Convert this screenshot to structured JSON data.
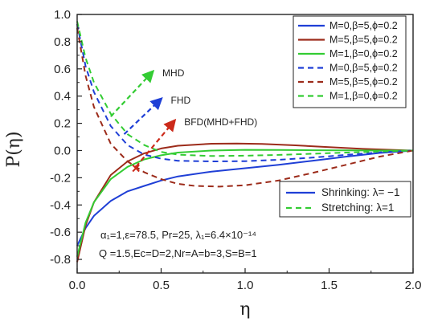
{
  "chart_data": {
    "type": "line",
    "xlabel": "η",
    "ylabel": "P(η)",
    "xlim": [
      0,
      2
    ],
    "ylim": [
      -0.9,
      1.0
    ],
    "xticks": [
      "0.0",
      "0.5",
      "1.0",
      "1.5",
      "2.0"
    ],
    "yticks": [
      "-0.8",
      "-0.6",
      "-0.4",
      "-0.2",
      "0.0",
      "0.2",
      "0.4",
      "0.6",
      "0.8",
      "1.0"
    ],
    "legend_position": "top-right",
    "series": [
      {
        "name": "M=0,β=5,ϕ=0.2",
        "color": "#1f3fd6",
        "dash": "solid",
        "group": "Shrinking",
        "x": [
          0,
          0.05,
          0.1,
          0.2,
          0.3,
          0.4,
          0.5,
          0.6,
          0.8,
          1.0,
          1.2,
          1.4,
          1.6,
          1.8,
          2.0
        ],
        "y": [
          -0.7,
          -0.57,
          -0.48,
          -0.37,
          -0.3,
          -0.26,
          -0.22,
          -0.19,
          -0.155,
          -0.13,
          -0.105,
          -0.075,
          -0.045,
          -0.018,
          0.0
        ]
      },
      {
        "name": "M=5,β=5,ϕ=0.2",
        "color": "#9c2b1a",
        "dash": "solid",
        "group": "Shrinking",
        "x": [
          0,
          0.05,
          0.1,
          0.2,
          0.3,
          0.4,
          0.5,
          0.6,
          0.8,
          0.95,
          1.1,
          1.3,
          1.5,
          1.7,
          2.0
        ],
        "y": [
          -0.82,
          -0.55,
          -0.38,
          -0.18,
          -0.08,
          -0.02,
          0.015,
          0.035,
          0.05,
          0.052,
          0.048,
          0.038,
          0.025,
          0.012,
          0.0
        ]
      },
      {
        "name": "M=1,β=0,ϕ=0.2",
        "color": "#33cc33",
        "dash": "solid",
        "group": "Shrinking",
        "x": [
          0,
          0.05,
          0.1,
          0.2,
          0.3,
          0.4,
          0.5,
          0.6,
          0.8,
          1.0,
          1.2,
          1.4,
          1.6,
          1.8,
          2.0
        ],
        "y": [
          -0.78,
          -0.53,
          -0.38,
          -0.21,
          -0.12,
          -0.065,
          -0.035,
          -0.015,
          0.0,
          0.005,
          0.004,
          0.002,
          0.001,
          0.0,
          0.0
        ]
      },
      {
        "name": "M=0,β=5,ϕ=0.2",
        "color": "#1f3fd6",
        "dash": "dashed",
        "group": "Stretching",
        "x": [
          0,
          0.05,
          0.1,
          0.2,
          0.3,
          0.4,
          0.5,
          0.6,
          0.8,
          1.0,
          1.2,
          1.4,
          1.6,
          1.8,
          2.0
        ],
        "y": [
          0.93,
          0.62,
          0.43,
          0.18,
          0.04,
          -0.03,
          -0.06,
          -0.075,
          -0.08,
          -0.078,
          -0.068,
          -0.052,
          -0.032,
          -0.014,
          0.0
        ]
      },
      {
        "name": "M=5,β=5,ϕ=0.2",
        "color": "#9c2b1a",
        "dash": "dashed",
        "group": "Stretching",
        "x": [
          0,
          0.05,
          0.1,
          0.2,
          0.3,
          0.4,
          0.5,
          0.6,
          0.7,
          0.85,
          1.0,
          1.2,
          1.4,
          1.6,
          1.8,
          2.0
        ],
        "y": [
          0.9,
          0.55,
          0.32,
          0.05,
          -0.08,
          -0.16,
          -0.21,
          -0.245,
          -0.26,
          -0.265,
          -0.255,
          -0.22,
          -0.165,
          -0.105,
          -0.045,
          0.0
        ]
      },
      {
        "name": "M=1,β=0,ϕ=0.2",
        "color": "#33cc33",
        "dash": "dashed",
        "group": "Stretching",
        "x": [
          0,
          0.05,
          0.1,
          0.2,
          0.3,
          0.4,
          0.5,
          0.6,
          0.8,
          1.0,
          1.2,
          1.4,
          1.6,
          1.8,
          2.0
        ],
        "y": [
          0.95,
          0.68,
          0.5,
          0.27,
          0.12,
          0.04,
          -0.01,
          -0.03,
          -0.04,
          -0.038,
          -0.032,
          -0.024,
          -0.015,
          -0.007,
          0.0
        ]
      }
    ],
    "line_style_legend": [
      {
        "label": "Shrinking: λ= −1",
        "dash": "solid",
        "color": "#1f3fd6"
      },
      {
        "label": "Stretching: λ=1",
        "dash": "dashed",
        "color": "#33cc33"
      }
    ],
    "annotations": [
      {
        "text": "MHD",
        "color": "#33cc33",
        "from": [
          0.2,
          0.25
        ],
        "to": [
          0.45,
          0.58
        ]
      },
      {
        "text": "FHD",
        "color": "#1f3fd6",
        "from": [
          0.28,
          0.12
        ],
        "to": [
          0.5,
          0.38
        ]
      },
      {
        "text": "BFD(MHD+FHD)",
        "color": "#cc2a1a",
        "from": [
          0.35,
          -0.12
        ],
        "to": [
          0.58,
          0.22
        ]
      }
    ],
    "crossing_marker": {
      "x": 0.35,
      "y": -0.13,
      "color": "#cc2a1a"
    },
    "parameters": {
      "line1": "α₁=1,ε=78.5, Pr=25, λ₁=6.4×10⁻¹⁴",
      "line2": "Q =1.5,Ec=D=2,Nr=A=b=3,S=B=1"
    }
  }
}
